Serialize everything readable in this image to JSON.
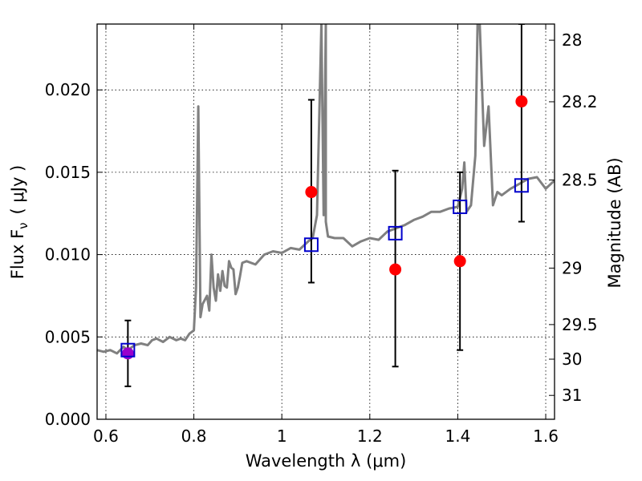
{
  "chart_data": {
    "type": "scatter",
    "xlabel": "Wavelength  λ (μm)",
    "ylabel": "Flux  F",
    "ylabel_sub": "ν",
    "ylabel_unit": "( μJy )",
    "y2label": "Magnitude (AB)",
    "xlim": [
      0.58,
      1.62
    ],
    "ylim": [
      0.0,
      0.024
    ],
    "grid": true,
    "x_ticks": [
      0.6,
      0.8,
      1.0,
      1.2,
      1.4,
      1.6
    ],
    "x_tick_labels": [
      "0.6",
      "0.8",
      "1",
      "1.2",
      "1.4",
      "1.6"
    ],
    "y_ticks": [
      0.0,
      0.005,
      0.01,
      0.015,
      0.02
    ],
    "y_tick_labels": [
      "0.000",
      "0.005",
      "0.010",
      "0.015",
      "0.020"
    ],
    "y2_ticks": [
      {
        "label": "28",
        "flux": 0.02302
      },
      {
        "label": "28.2",
        "flux": 0.01928
      },
      {
        "label": "28.5",
        "flux": 0.01453
      },
      {
        "label": "29",
        "flux": 0.00918
      },
      {
        "label": "29.5",
        "flux": 0.00575
      },
      {
        "label": "30",
        "flux": 0.00365
      },
      {
        "label": "31",
        "flux": 0.00145
      }
    ],
    "series": [
      {
        "role": "model spectrum",
        "color": "#808080",
        "x": [
          0.58,
          0.595,
          0.61,
          0.625,
          0.64,
          0.65,
          0.665,
          0.68,
          0.695,
          0.705,
          0.715,
          0.73,
          0.745,
          0.76,
          0.77,
          0.78,
          0.79,
          0.8,
          0.805,
          0.81,
          0.815,
          0.82,
          0.83,
          0.835,
          0.84,
          0.845,
          0.85,
          0.855,
          0.86,
          0.865,
          0.87,
          0.875,
          0.88,
          0.885,
          0.89,
          0.895,
          0.9,
          0.905,
          0.91,
          0.92,
          0.94,
          0.96,
          0.98,
          1.0,
          1.02,
          1.04,
          1.06,
          1.07,
          1.08,
          1.09,
          1.095,
          1.1,
          1.1,
          1.105,
          1.12,
          1.14,
          1.16,
          1.18,
          1.2,
          1.22,
          1.24,
          1.26,
          1.28,
          1.3,
          1.32,
          1.34,
          1.36,
          1.38,
          1.4,
          1.41,
          1.415,
          1.42,
          1.43,
          1.44,
          1.445,
          1.45,
          1.46,
          1.47,
          1.48,
          1.49,
          1.5,
          1.52,
          1.54,
          1.56,
          1.58,
          1.6,
          1.62
        ],
        "y": [
          0.0042,
          0.0041,
          0.0042,
          0.004,
          0.0044,
          0.0042,
          0.0045,
          0.0046,
          0.0045,
          0.0048,
          0.0049,
          0.0047,
          0.005,
          0.0048,
          0.0049,
          0.0048,
          0.0052,
          0.0054,
          0.008,
          0.019,
          0.0062,
          0.007,
          0.0075,
          0.0066,
          0.01,
          0.008,
          0.0072,
          0.0088,
          0.0078,
          0.009,
          0.0081,
          0.008,
          0.0096,
          0.0092,
          0.0091,
          0.0076,
          0.008,
          0.0087,
          0.0095,
          0.0096,
          0.0094,
          0.01,
          0.0102,
          0.0101,
          0.0104,
          0.0103,
          0.0108,
          0.011,
          0.0124,
          0.024,
          0.0124,
          0.024,
          0.012,
          0.0111,
          0.011,
          0.011,
          0.0105,
          0.0108,
          0.011,
          0.0109,
          0.0114,
          0.0116,
          0.0118,
          0.0121,
          0.0123,
          0.0126,
          0.0126,
          0.0128,
          0.0129,
          0.014,
          0.0156,
          0.0126,
          0.013,
          0.016,
          0.024,
          0.024,
          0.0166,
          0.019,
          0.013,
          0.0138,
          0.0136,
          0.014,
          0.0143,
          0.0146,
          0.0147,
          0.014,
          0.0145
        ]
      },
      {
        "role": "model photometry",
        "color": "#0000cc",
        "x": [
          0.65,
          1.067,
          1.258,
          1.405,
          1.545
        ],
        "y": [
          0.0042,
          0.0106,
          0.0113,
          0.0129,
          0.0142
        ]
      },
      {
        "role": "observed photometry",
        "color": "#ff0000",
        "x": [
          0.65,
          1.067,
          1.258,
          1.405,
          1.545
        ],
        "y": [
          0.004,
          0.0138,
          0.0091,
          0.0096,
          0.0193
        ],
        "yerr_low": [
          0.002,
          0.0083,
          0.0032,
          0.0042,
          0.012
        ],
        "yerr_high": [
          0.006,
          0.0194,
          0.0151,
          0.015,
          0.024
        ],
        "point_colors": [
          "#9900cc",
          "#ff0000",
          "#ff0000",
          "#ff0000",
          "#ff0000"
        ]
      }
    ]
  }
}
